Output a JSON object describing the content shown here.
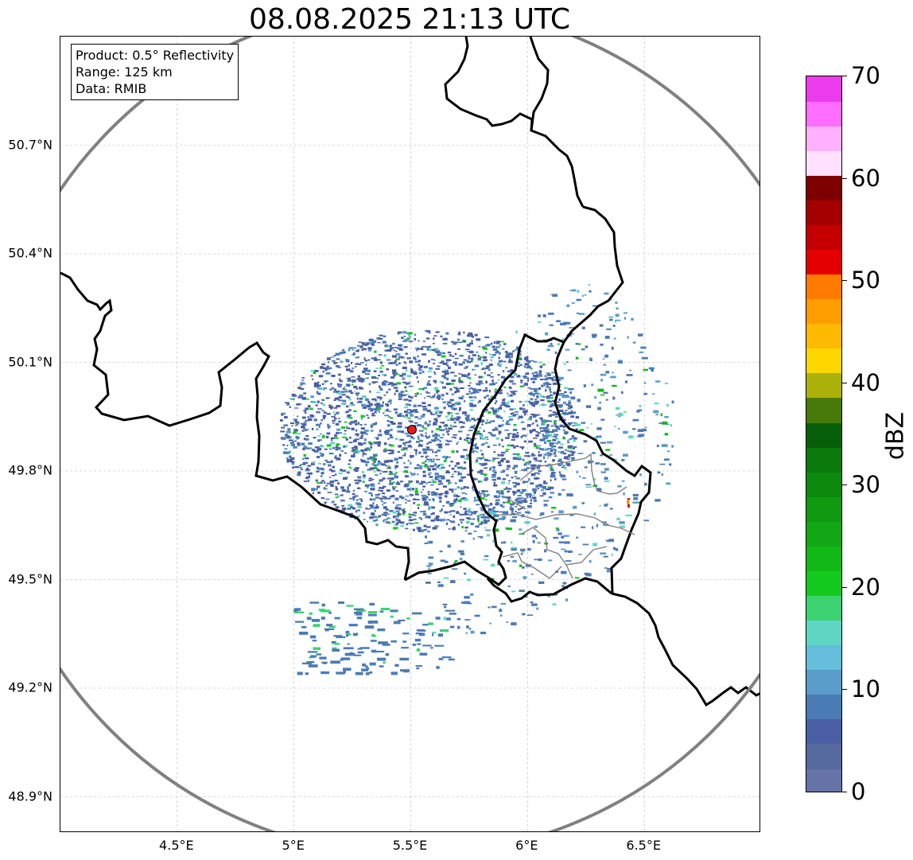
{
  "title": "08.08.2025 21:13 UTC",
  "info": {
    "product": "Product: 0.5° Reflectivity",
    "range": "Range: 125 km",
    "data": "Data: RMIB"
  },
  "map": {
    "lon_range": [
      4.0,
      7.0
    ],
    "lat_range": [
      48.8,
      51.0
    ],
    "radar_site": {
      "lon": 5.505,
      "lat": 49.914
    },
    "range_km": 125,
    "x_ticks": [
      {
        "lon": 4.5,
        "label": "4.5°E"
      },
      {
        "lon": 5.0,
        "label": "5°E"
      },
      {
        "lon": 5.5,
        "label": "5.5°E"
      },
      {
        "lon": 6.0,
        "label": "6°E"
      },
      {
        "lon": 6.5,
        "label": "6.5°E"
      }
    ],
    "y_ticks": [
      {
        "lat": 48.9,
        "label": "48.9°N"
      },
      {
        "lat": 49.2,
        "label": "49.2°N"
      },
      {
        "lat": 49.5,
        "label": "49.5°N"
      },
      {
        "lat": 49.8,
        "label": "49.8°N"
      },
      {
        "lat": 50.1,
        "label": "50.1°N"
      },
      {
        "lat": 50.4,
        "label": "50.4°N"
      },
      {
        "lat": 50.7,
        "label": "50.7°N"
      }
    ],
    "grid": true,
    "range_ring_color": "#808080",
    "border_color": "#000000"
  },
  "colorbar": {
    "label": "dBZ",
    "min": 0,
    "max": 70,
    "tick_labels": [
      {
        "value": 0,
        "label": "0"
      },
      {
        "value": 10,
        "label": "10"
      },
      {
        "value": 20,
        "label": "20"
      },
      {
        "value": 30,
        "label": "30"
      },
      {
        "value": 40,
        "label": "40"
      },
      {
        "value": 50,
        "label": "50"
      },
      {
        "value": 60,
        "label": "60"
      },
      {
        "value": 70,
        "label": "70"
      }
    ],
    "colors": [
      "#6673a8",
      "#56699f",
      "#4a5fa3",
      "#4b7bb5",
      "#5a9cca",
      "#64bedc",
      "#5fd6c4",
      "#3dd373",
      "#14c91e",
      "#12b816",
      "#12a815",
      "#0f9a12",
      "#0c8a0e",
      "#0a7a0c",
      "#085f0a",
      "#477a0a",
      "#acb10a",
      "#fed600",
      "#feba00",
      "#fe9d00",
      "#fe7b00",
      "#e40000",
      "#c40000",
      "#a40000",
      "#7e0000",
      "#ffe0ff",
      "#ffb0ff",
      "#ff6eff",
      "#ec3bec"
    ]
  }
}
